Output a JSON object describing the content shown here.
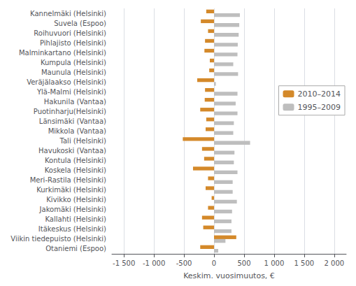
{
  "chart_data": {
    "type": "bar",
    "orientation": "horizontal",
    "categories": [
      "Kannelmäki (Helsinki)",
      "Suvela (Espoo)",
      "Roihuvuori (Helsinki)",
      "Pihlajisto (Helsinki)",
      "Malminkartano (Helsinki)",
      "Kumpula (Helsinki)",
      "Maunula (Helsinki)",
      "Veräjälaakso (Helsinki)",
      "Ylä-Malmi (Helsinki)",
      "Hakunila (Vantaa)",
      "Puotinharju(Helsinki)",
      "Länsimäki (Vantaa)",
      "Mikkola (Vantaa)",
      "Tali (Helsinki)",
      "Havukoski (Vantaa)",
      "Kontula (Helsinki)",
      "Koskela (Helsinki)",
      "Meri-Rastila (Helsinki)",
      "Kurkimäki (Helsinki)",
      "Kivikko (Helsinki)",
      "Jakomäki (Helsinki)",
      "Kallahti (Helsinki)",
      "Itäkeskus (Helsinki)",
      "Viikin tiedepuisto (Helsinki)",
      "Otaniemi (Espoo)"
    ],
    "series": [
      {
        "name": "2010–2014",
        "color": "#D4892A",
        "values": [
          -130,
          -220,
          -100,
          -150,
          -160,
          -70,
          -80,
          -280,
          -150,
          -155,
          -230,
          -130,
          -140,
          -520,
          -200,
          -165,
          -350,
          -100,
          -140,
          -40,
          -100,
          -200,
          -180,
          370,
          -230
        ]
      },
      {
        "name": "1995–2009",
        "color": "#BEBEBE",
        "values": [
          430,
          420,
          410,
          395,
          390,
          320,
          400,
          30,
          390,
          360,
          390,
          330,
          320,
          600,
          340,
          330,
          390,
          310,
          310,
          380,
          300,
          290,
          290,
          190,
          70
        ]
      }
    ],
    "xlabel": "Keskim. vuosimuutos, €",
    "xlim": [
      -1700,
      2200
    ],
    "xticks": [
      {
        "value": -1500,
        "label": "-1 500"
      },
      {
        "value": -1000,
        "label": "-1 000"
      },
      -500,
      0,
      500,
      {
        "value": 1000,
        "label": "1 000"
      },
      {
        "value": 1500,
        "label": "1 500"
      },
      {
        "value": 2000,
        "label": "2 000"
      }
    ],
    "grid": true,
    "legend": "right"
  }
}
